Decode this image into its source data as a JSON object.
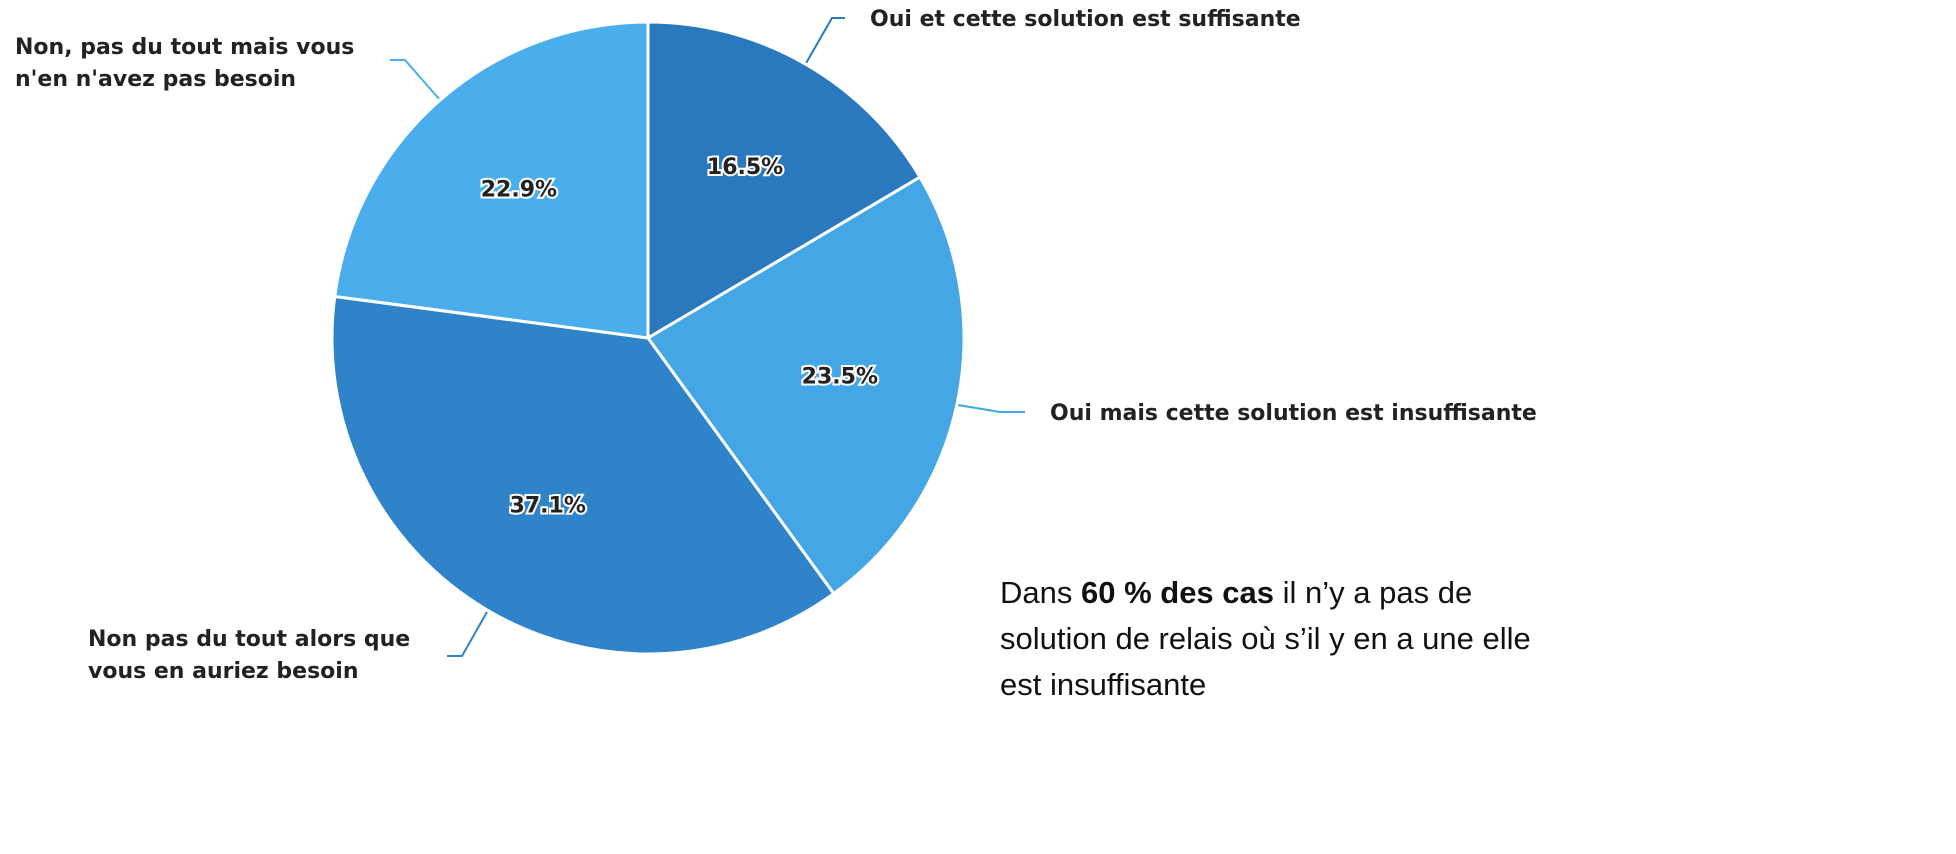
{
  "chart_data": {
    "type": "pie",
    "categories": [
      "Oui et cette solution est suffisante",
      "Oui mais cette solution est insuffisante",
      "Non pas du tout alors que vous en auriez besoin",
      "Non, pas du tout mais vous n'en n'avez pas besoin"
    ],
    "values": [
      16.5,
      23.5,
      37.1,
      22.9
    ],
    "value_labels": [
      "16.5%",
      "23.5%",
      "37.1%",
      "22.9%"
    ],
    "colors": [
      "#2a79bf",
      "#45a6e6",
      "#2f83c9",
      "#4aaeed"
    ]
  },
  "annotation": {
    "before": "Dans ",
    "bold": "60 % des cas",
    "after": " il n’y a pas de solution de relais où s’il y en a une elle est insuffisante"
  }
}
